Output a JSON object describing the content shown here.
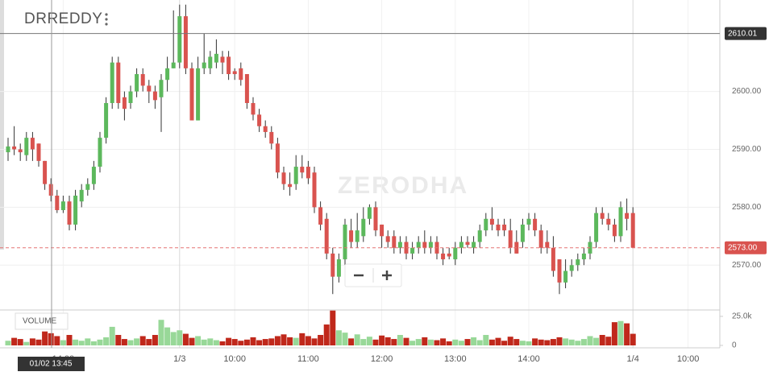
{
  "chart_data": {
    "type": "candlestick",
    "title": "DRREDDY",
    "watermark": "ZERODHA",
    "volume_label": "VOLUME",
    "categories": [
      null,
      null,
      null,
      null,
      null,
      null,
      null,
      null,
      null,
      "14:00",
      null,
      null,
      null,
      null,
      null,
      null,
      null,
      null,
      null,
      null,
      null,
      null,
      null,
      null,
      null,
      null,
      null,
      null,
      "1/3",
      null,
      null,
      null,
      null,
      null,
      null,
      null,
      null,
      "10:00",
      null,
      null,
      null,
      null,
      null,
      null,
      null,
      null,
      null,
      null,
      null,
      "11:00",
      null,
      null,
      null,
      null,
      null,
      null,
      null,
      null,
      null,
      null,
      null,
      "12:00",
      null,
      null,
      null,
      null,
      null,
      null,
      null,
      null,
      null,
      null,
      null,
      "13:00",
      null,
      null,
      null,
      null,
      null,
      null,
      null,
      null,
      null,
      null,
      null,
      "14:00",
      null,
      null,
      null,
      null,
      null,
      null,
      null,
      null,
      null,
      null,
      null,
      null,
      null,
      null,
      null,
      null,
      "1/4",
      null,
      null,
      null,
      null,
      null,
      null,
      null,
      null,
      "10:00",
      null,
      null,
      null,
      null
    ],
    "open": [
      2589.5,
      2590.5,
      2590,
      2589,
      2592,
      2591,
      2588,
      2584,
      2582,
      2579.5,
      2581,
      2577,
      2581,
      2583,
      2584,
      2587,
      2592,
      2598,
      2605,
      2599,
      2598,
      2600,
      2603,
      2601,
      2600,
      2599,
      2602,
      2604,
      2605,
      2613,
      2604,
      2595,
      2604,
      2604,
      2605,
      2606,
      2606,
      2603.5,
      2604,
      2603,
      2598,
      2596,
      2594,
      2593,
      2591,
      2586,
      2584,
      2584,
      2587,
      2587,
      2586,
      2580,
      2578,
      2572,
      2568,
      2571,
      2576,
      2574,
      2575,
      2578,
      2580,
      2577,
      2575,
      2575,
      2573,
      2574,
      2572,
      2573,
      2574,
      2573,
      2574,
      2572,
      2572,
      2571,
      2573,
      2574,
      2573,
      2574,
      2576,
      2578,
      2577,
      2577,
      2576,
      2574,
      2574,
      2577,
      2578,
      2576,
      2574,
      2573,
      2571,
      2567,
      2569,
      2570,
      2571,
      2572,
      2574,
      2579,
      2578,
      2577,
      2575,
      2579,
      2579,
      null,
      null,
      null,
      null,
      null,
      null,
      null,
      null,
      null,
      null,
      null,
      null,
      null
    ],
    "high": [
      2592,
      2594,
      2591,
      2593,
      2593,
      2591,
      2588,
      2585,
      2583,
      2582,
      2582,
      2583,
      2584,
      2585,
      2588,
      2593,
      2599,
      2606,
      2606,
      2600,
      2601,
      2604,
      2604,
      2602,
      2601,
      2603,
      2606,
      2614,
      2615,
      2615,
      2605,
      2606,
      2610,
      2607,
      2609,
      2607,
      2607,
      2604,
      2605,
      2603,
      2599,
      2597,
      2595,
      2594,
      2592,
      2587,
      2586,
      2589,
      2589,
      2588,
      2587,
      2581,
      2579,
      2573,
      2572,
      2578,
      2578,
      2579,
      2580,
      2580.5,
      2581,
      2577,
      2576,
      2576,
      2575,
      2575,
      2574,
      2575,
      2576,
      2575,
      2575,
      2573,
      2573,
      2574,
      2575,
      2575,
      2575,
      2577,
      2579,
      2580,
      2578,
      2578,
      2578,
      2576,
      2578,
      2579,
      2579,
      2577,
      2576,
      2575,
      2571,
      2571,
      2571,
      2572,
      2573,
      2575,
      2580,
      2580,
      2579,
      2578,
      2581,
      2581.5,
      2580,
      null,
      null,
      null,
      null,
      null,
      null,
      null,
      null,
      null,
      null,
      null,
      null,
      null
    ],
    "low": [
      2588,
      2589,
      2588,
      2588,
      2588,
      2587,
      2583,
      2581,
      2579,
      2579,
      2576,
      2576,
      2580,
      2582,
      2583,
      2586,
      2591,
      2597,
      2597,
      2595,
      2597,
      2599,
      2600,
      2598,
      2597,
      2593,
      2600,
      2604,
      2604,
      2603,
      2595,
      2595,
      2603,
      2603,
      2604,
      2603,
      2602,
      2602,
      2601,
      2597,
      2595,
      2593,
      2592,
      2590,
      2585,
      2583,
      2582,
      2583,
      2585,
      2584,
      2579,
      2576,
      2571,
      2565,
      2567,
      2570,
      2573,
      2573,
      2574,
      2577,
      2575,
      2573,
      2573,
      2572,
      2572,
      2571,
      2571,
      2572,
      2572,
      2572,
      2571,
      2570,
      2571,
      2570,
      2572,
      2573,
      2572,
      2573,
      2575,
      2576,
      2575,
      2575,
      2572,
      2572,
      2573,
      2576,
      2575,
      2572,
      2572,
      2568,
      2565,
      2566,
      2568,
      2569,
      2570,
      2571,
      2573,
      2577,
      2576,
      2574,
      2574,
      2576,
      2573,
      null,
      null,
      null,
      null,
      null,
      null,
      null,
      null,
      null,
      null,
      null,
      null,
      null
    ],
    "close": [
      2590.5,
      2590,
      2589.5,
      2592,
      2590,
      2588,
      2584,
      2582,
      2579.5,
      2581,
      2577,
      2582,
      2583,
      2584,
      2587,
      2592,
      2598,
      2605,
      2598,
      2597,
      2600,
      2603,
      2601,
      2600,
      2598.5,
      2602,
      2604,
      2605,
      2613,
      2604,
      2595,
      2604,
      2605,
      2606,
      2606.5,
      2605,
      2603,
      2603,
      2602,
      2598,
      2596,
      2594,
      2593,
      2591,
      2586,
      2584,
      2583.5,
      2587,
      2586,
      2585,
      2580,
      2577,
      2572,
      2568,
      2571,
      2577,
      2574,
      2576,
      2578,
      2580,
      2576,
      2575,
      2574,
      2573,
      2574,
      2572,
      2573,
      2574,
      2573,
      2574,
      2572,
      2571,
      2571.5,
      2573,
      2574,
      2573.5,
      2574,
      2576,
      2578,
      2577,
      2576,
      2576,
      2573,
      2572,
      2577,
      2578,
      2576,
      2573,
      2573,
      2569,
      2567,
      2569,
      2570,
      2571,
      2572,
      2574,
      2579,
      2578,
      2577,
      2575,
      2580,
      2578,
      2573,
      null,
      null,
      null,
      null,
      null,
      null,
      null,
      null,
      null,
      null,
      null,
      null,
      null
    ],
    "volume": [
      4000,
      6500,
      5500,
      3000,
      6000,
      5000,
      12000,
      10500,
      8000,
      4500,
      9000,
      5000,
      4000,
      6000,
      3500,
      5000,
      7000,
      16000,
      9000,
      5500,
      4500,
      6000,
      8000,
      5500,
      9000,
      22000,
      15500,
      11500,
      13000,
      10000,
      6500,
      8000,
      5000,
      6000,
      4500,
      3500,
      6500,
      5500,
      4000,
      5000,
      7000,
      4500,
      5500,
      6000,
      8000,
      9500,
      7000,
      6500,
      10500,
      8000,
      6000,
      9000,
      18000,
      30000,
      13000,
      11000,
      6000,
      9500,
      5500,
      7500,
      5000,
      8500,
      7000,
      5500,
      9000,
      6500,
      4000,
      5500,
      7000,
      5000,
      4500,
      6000,
      3500,
      5000,
      4000,
      5500,
      7000,
      4500,
      9000,
      5000,
      6500,
      4000,
      7500,
      5500,
      4000,
      3500,
      6000,
      5000,
      4500,
      5500,
      7000,
      6000,
      5000,
      4000,
      5500,
      8000,
      6500,
      9000,
      7500,
      20000,
      21000,
      19000,
      10000,
      null,
      null,
      null,
      null,
      null,
      null,
      null,
      null,
      null,
      null,
      null,
      null,
      null
    ],
    "up_color": "#5cb85c",
    "down_color": "#d9534f",
    "volume_up_color": "#98d898",
    "volume_down_color": "#c0281b",
    "ylim": [
      2562.25,
      2615.8
    ],
    "yticks": [
      {
        "value": 2570,
        "label": "2570.00"
      },
      {
        "value": 2580,
        "label": "2580.00"
      },
      {
        "value": 2590,
        "label": "2590.00"
      },
      {
        "value": 2600,
        "label": "2600.00"
      }
    ],
    "volume_ylim": [
      0,
      30500
    ],
    "volume_yticks": [
      0,
      {
        "value": 25000,
        "label": "25.0k"
      }
    ],
    "last_price": {
      "value": 2573,
      "label": "2573.00"
    },
    "crosshair": {
      "x_label": "01/02 13:45",
      "y": 2610.01
    }
  }
}
